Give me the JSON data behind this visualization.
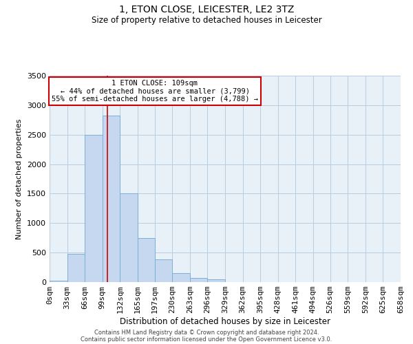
{
  "title": "1, ETON CLOSE, LEICESTER, LE2 3TZ",
  "subtitle": "Size of property relative to detached houses in Leicester",
  "xlabel": "Distribution of detached houses by size in Leicester",
  "ylabel": "Number of detached properties",
  "bar_color": "#c5d8f0",
  "bar_edge_color": "#7bafd4",
  "background_color": "#e8f0f8",
  "grid_color": "#b8cce0",
  "annotation_box_color": "#ffffff",
  "annotation_box_edge": "#cc0000",
  "vline_color": "#cc0000",
  "vline_x": 109,
  "bin_edges": [
    0,
    33,
    66,
    99,
    132,
    165,
    197,
    230,
    263,
    296,
    329,
    362,
    395,
    428,
    461,
    494,
    526,
    559,
    592,
    625,
    658
  ],
  "bin_values": [
    20,
    480,
    2500,
    2820,
    1500,
    750,
    390,
    150,
    70,
    50,
    0,
    0,
    0,
    0,
    0,
    0,
    0,
    0,
    0,
    0
  ],
  "tick_labels": [
    "0sqm",
    "33sqm",
    "66sqm",
    "99sqm",
    "132sqm",
    "165sqm",
    "197sqm",
    "230sqm",
    "263sqm",
    "296sqm",
    "329sqm",
    "362sqm",
    "395sqm",
    "428sqm",
    "461sqm",
    "494sqm",
    "526sqm",
    "559sqm",
    "592sqm",
    "625sqm",
    "658sqm"
  ],
  "ylim": [
    0,
    3500
  ],
  "yticks": [
    0,
    500,
    1000,
    1500,
    2000,
    2500,
    3000,
    3500
  ],
  "annotation_line1": "1 ETON CLOSE: 109sqm",
  "annotation_line2": "← 44% of detached houses are smaller (3,799)",
  "annotation_line3": "55% of semi-detached houses are larger (4,788) →",
  "footer_line1": "Contains HM Land Registry data © Crown copyright and database right 2024.",
  "footer_line2": "Contains public sector information licensed under the Open Government Licence v3.0."
}
